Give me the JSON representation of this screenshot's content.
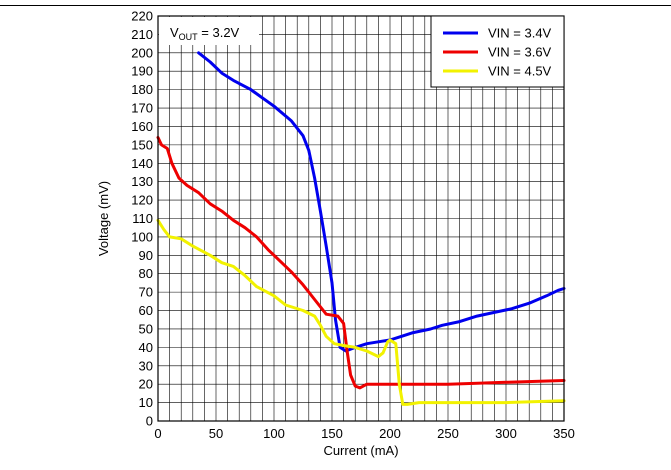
{
  "chart_data": {
    "type": "line",
    "title": "",
    "xlabel": "Current (mA)",
    "ylabel": "Voltage (mV)",
    "xlim": [
      0,
      350
    ],
    "ylim": [
      0,
      220
    ],
    "x_ticks": [
      0,
      50,
      100,
      150,
      200,
      250,
      300,
      350
    ],
    "y_ticks": [
      0,
      10,
      20,
      30,
      40,
      50,
      60,
      70,
      80,
      90,
      100,
      110,
      120,
      130,
      140,
      150,
      160,
      170,
      180,
      190,
      200,
      210,
      220
    ],
    "grid": true,
    "legend_position": "top-right",
    "annotation": {
      "main": "V",
      "subscript": "OUT",
      "suffix": " = 3.2V"
    },
    "series": [
      {
        "name": "VIN = 3.4V",
        "color": "#0000ee",
        "points": [
          [
            35,
            200
          ],
          [
            45,
            195
          ],
          [
            55,
            189
          ],
          [
            65,
            185
          ],
          [
            80,
            180
          ],
          [
            100,
            171
          ],
          [
            115,
            163
          ],
          [
            125,
            155
          ],
          [
            130,
            147
          ],
          [
            135,
            132
          ],
          [
            140,
            114
          ],
          [
            145,
            95
          ],
          [
            150,
            75
          ],
          [
            153,
            55
          ],
          [
            157,
            40
          ],
          [
            162,
            38
          ],
          [
            170,
            40
          ],
          [
            180,
            42
          ],
          [
            190,
            43
          ],
          [
            200,
            44
          ],
          [
            210,
            46
          ],
          [
            220,
            48
          ],
          [
            235,
            50
          ],
          [
            245,
            52
          ],
          [
            260,
            54
          ],
          [
            275,
            57
          ],
          [
            290,
            59
          ],
          [
            305,
            61
          ],
          [
            320,
            64
          ],
          [
            335,
            68
          ],
          [
            345,
            71
          ],
          [
            350,
            72
          ]
        ]
      },
      {
        "name": "VIN = 3.6V",
        "color": "#ee0000",
        "points": [
          [
            0,
            154
          ],
          [
            3,
            150
          ],
          [
            8,
            148
          ],
          [
            12,
            140
          ],
          [
            18,
            132
          ],
          [
            25,
            128
          ],
          [
            35,
            124
          ],
          [
            45,
            118
          ],
          [
            55,
            114
          ],
          [
            65,
            109
          ],
          [
            75,
            105
          ],
          [
            85,
            100
          ],
          [
            95,
            93
          ],
          [
            105,
            87
          ],
          [
            115,
            81
          ],
          [
            125,
            74
          ],
          [
            135,
            66
          ],
          [
            145,
            58
          ],
          [
            155,
            57
          ],
          [
            160,
            53
          ],
          [
            163,
            38
          ],
          [
            166,
            25
          ],
          [
            170,
            19
          ],
          [
            174,
            18
          ],
          [
            180,
            20
          ],
          [
            200,
            20
          ],
          [
            250,
            20
          ],
          [
            300,
            21
          ],
          [
            350,
            22
          ]
        ]
      },
      {
        "name": "VIN = 4.5V",
        "color": "#f2f200",
        "points": [
          [
            0,
            109
          ],
          [
            5,
            104
          ],
          [
            10,
            100
          ],
          [
            20,
            99
          ],
          [
            30,
            95
          ],
          [
            45,
            90
          ],
          [
            55,
            86
          ],
          [
            65,
            84
          ],
          [
            75,
            79
          ],
          [
            85,
            73
          ],
          [
            100,
            68
          ],
          [
            110,
            63
          ],
          [
            125,
            60
          ],
          [
            135,
            57
          ],
          [
            140,
            52
          ],
          [
            145,
            46
          ],
          [
            152,
            42
          ],
          [
            160,
            41
          ],
          [
            170,
            40
          ],
          [
            180,
            38
          ],
          [
            190,
            35
          ],
          [
            194,
            37
          ],
          [
            198,
            43
          ],
          [
            200,
            44
          ],
          [
            205,
            42
          ],
          [
            208,
            20
          ],
          [
            211,
            9
          ],
          [
            215,
            9
          ],
          [
            225,
            10
          ],
          [
            250,
            10
          ],
          [
            300,
            10
          ],
          [
            350,
            11
          ]
        ]
      }
    ]
  }
}
